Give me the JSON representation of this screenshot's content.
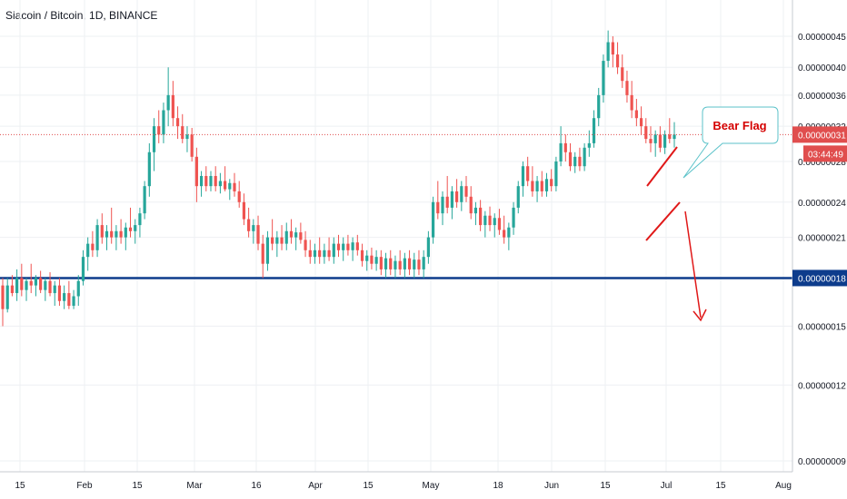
{
  "title": "Siacoin / Bitcoin, 1D, BINANCE",
  "chart_data": {
    "type": "candlestick",
    "x_ticks": [
      "15",
      "Feb",
      "15",
      "Mar",
      "16",
      "Apr",
      "15",
      "May",
      "18",
      "Jun",
      "15",
      "Jul",
      "15",
      "Aug"
    ],
    "y_ticks": [
      "0.00000045",
      "0.00000040",
      "0.00000036",
      "0.00000032",
      "0.00000028",
      "0.00000024",
      "0.00000021",
      "0.00000015",
      "0.00000012",
      "0.00000009"
    ],
    "y_scale": "log",
    "ylim": [
      8.6e-08,
      5.1e-07
    ],
    "grid": true,
    "current_price": {
      "value": 3.1e-07,
      "label": "0.00000031",
      "countdown": "03:44:49",
      "color": "#e04e4e"
    },
    "support_level": {
      "value": 1.8e-07,
      "label": "0.00000018",
      "color": "#0d3c8c"
    },
    "annotation": {
      "text": "Bear Flag",
      "color": "#d40000",
      "box_color": "#5bc2c9"
    },
    "candles": [
      [
        1.75e-07,
        1.8e-07,
        1.5e-07,
        1.6e-07
      ],
      [
        1.6e-07,
        1.8e-07,
        1.58e-07,
        1.75e-07
      ],
      [
        1.75e-07,
        1.82e-07,
        1.68e-07,
        1.7e-07
      ],
      [
        1.7e-07,
        1.86e-07,
        1.65e-07,
        1.8e-07
      ],
      [
        1.8e-07,
        1.9e-07,
        1.68e-07,
        1.72e-07
      ],
      [
        1.72e-07,
        1.8e-07,
        1.65e-07,
        1.78e-07
      ],
      [
        1.78e-07,
        1.9e-07,
        1.7e-07,
        1.75e-07
      ],
      [
        1.75e-07,
        1.82e-07,
        1.68e-07,
        1.8e-07
      ],
      [
        1.8e-07,
        1.85e-07,
        1.7e-07,
        1.72e-07
      ],
      [
        1.72e-07,
        1.8e-07,
        1.65e-07,
        1.78e-07
      ],
      [
        1.78e-07,
        1.84e-07,
        1.68e-07,
        1.7e-07
      ],
      [
        1.7e-07,
        1.78e-07,
        1.62e-07,
        1.75e-07
      ],
      [
        1.75e-07,
        1.8e-07,
        1.62e-07,
        1.65e-07
      ],
      [
        1.65e-07,
        1.75e-07,
        1.6e-07,
        1.7e-07
      ],
      [
        1.7e-07,
        1.78e-07,
        1.6e-07,
        1.62e-07
      ],
      [
        1.62e-07,
        1.72e-07,
        1.6e-07,
        1.68e-07
      ],
      [
        1.68e-07,
        1.82e-07,
        1.62e-07,
        1.78e-07
      ],
      [
        1.78e-07,
        2e-07,
        1.75e-07,
        1.95e-07
      ],
      [
        1.95e-07,
        2.1e-07,
        1.85e-07,
        2.05e-07
      ],
      [
        2.05e-07,
        2.15e-07,
        1.95e-07,
        2e-07
      ],
      [
        2e-07,
        2.25e-07,
        1.95e-07,
        2.2e-07
      ],
      [
        2.2e-07,
        2.3e-07,
        2.05e-07,
        2.1e-07
      ],
      [
        2.1e-07,
        2.2e-07,
        2e-07,
        2.15e-07
      ],
      [
        2.15e-07,
        2.35e-07,
        2.05e-07,
        2.1e-07
      ],
      [
        2.1e-07,
        2.2e-07,
        2e-07,
        2.15e-07
      ],
      [
        2.15e-07,
        2.25e-07,
        2.05e-07,
        2.1e-07
      ],
      [
        2.1e-07,
        2.22e-07,
        2e-07,
        2.18e-07
      ],
      [
        2.18e-07,
        2.35e-07,
        2.1e-07,
        2.15e-07
      ],
      [
        2.15e-07,
        2.25e-07,
        2.05e-07,
        2.2e-07
      ],
      [
        2.2e-07,
        2.35e-07,
        2.1e-07,
        2.3e-07
      ],
      [
        2.3e-07,
        2.6e-07,
        2.25e-07,
        2.55e-07
      ],
      [
        2.55e-07,
        3e-07,
        2.45e-07,
        2.9e-07
      ],
      [
        2.9e-07,
        3.3e-07,
        2.7e-07,
        3.2e-07
      ],
      [
        3.2e-07,
        3.4e-07,
        3e-07,
        3.1e-07
      ],
      [
        3.1e-07,
        3.5e-07,
        3e-07,
        3.4e-07
      ],
      [
        3.4e-07,
        4e-07,
        3.2e-07,
        3.6e-07
      ],
      [
        3.6e-07,
        3.8e-07,
        3.2e-07,
        3.3e-07
      ],
      [
        3.3e-07,
        3.45e-07,
        3.05e-07,
        3.2e-07
      ],
      [
        3.2e-07,
        3.35e-07,
        3e-07,
        3.05e-07
      ],
      [
        3.05e-07,
        3.2e-07,
        2.9e-07,
        3.1e-07
      ],
      [
        3.1e-07,
        3.18e-07,
        2.8e-07,
        2.85e-07
      ],
      [
        2.85e-07,
        2.95e-07,
        2.4e-07,
        2.55e-07
      ],
      [
        2.55e-07,
        2.7e-07,
        2.45e-07,
        2.65e-07
      ],
      [
        2.65e-07,
        2.75e-07,
        2.5e-07,
        2.55e-07
      ],
      [
        2.55e-07,
        2.7e-07,
        2.5e-07,
        2.65e-07
      ],
      [
        2.65e-07,
        2.75e-07,
        2.5e-07,
        2.55e-07
      ],
      [
        2.55e-07,
        2.68e-07,
        2.48e-07,
        2.6e-07
      ],
      [
        2.6e-07,
        2.75e-07,
        2.5e-07,
        2.52e-07
      ],
      [
        2.52e-07,
        2.62e-07,
        2.42e-07,
        2.58e-07
      ],
      [
        2.58e-07,
        2.68e-07,
        2.45e-07,
        2.5e-07
      ],
      [
        2.5e-07,
        2.6e-07,
        2.35e-07,
        2.4e-07
      ],
      [
        2.4e-07,
        2.48e-07,
        2.2e-07,
        2.25e-07
      ],
      [
        2.25e-07,
        2.35e-07,
        2.1e-07,
        2.15e-07
      ],
      [
        2.15e-07,
        2.25e-07,
        2.05e-07,
        2.2e-07
      ],
      [
        2.2e-07,
        2.28e-07,
        2e-07,
        2.05e-07
      ],
      [
        2.05e-07,
        2.12e-07,
        1.8e-07,
        1.9e-07
      ],
      [
        1.9e-07,
        2.15e-07,
        1.85e-07,
        2.1e-07
      ],
      [
        2.1e-07,
        2.25e-07,
        2e-07,
        2.05e-07
      ],
      [
        2.05e-07,
        2.15e-07,
        1.95e-07,
        2.1e-07
      ],
      [
        2.1e-07,
        2.2e-07,
        2e-07,
        2.05e-07
      ],
      [
        2.05e-07,
        2.22e-07,
        2e-07,
        2.15e-07
      ],
      [
        2.15e-07,
        2.25e-07,
        2.05e-07,
        2.1e-07
      ],
      [
        2.1e-07,
        2.18e-07,
        2e-07,
        2.14e-07
      ],
      [
        2.14e-07,
        2.22e-07,
        2.05e-07,
        2.08e-07
      ],
      [
        2.08e-07,
        2.15e-07,
        1.95e-07,
        2e-07
      ],
      [
        2e-07,
        2.08e-07,
        1.9e-07,
        1.95e-07
      ],
      [
        1.95e-07,
        2.05e-07,
        1.9e-07,
        2e-07
      ],
      [
        2e-07,
        2.1e-07,
        1.9e-07,
        1.95e-07
      ],
      [
        1.95e-07,
        2.05e-07,
        1.9e-07,
        2e-07
      ],
      [
        2e-07,
        2.1e-07,
        1.92e-07,
        1.95e-07
      ],
      [
        1.95e-07,
        2.1e-07,
        1.9e-07,
        2.05e-07
      ],
      [
        2.05e-07,
        2.12e-07,
        1.95e-07,
        2e-07
      ],
      [
        2e-07,
        2.1e-07,
        1.92e-07,
        2.05e-07
      ],
      [
        2.05e-07,
        2.12e-07,
        1.96e-07,
        2e-07
      ],
      [
        2e-07,
        2.1e-07,
        1.92e-07,
        2.06e-07
      ],
      [
        2.06e-07,
        2.12e-07,
        1.96e-07,
        2e-07
      ],
      [
        2e-07,
        2.05e-07,
        1.88e-07,
        1.92e-07
      ],
      [
        1.92e-07,
        2e-07,
        1.85e-07,
        1.96e-07
      ],
      [
        1.96e-07,
        2.02e-07,
        1.86e-07,
        1.9e-07
      ],
      [
        1.9e-07,
        2e-07,
        1.85e-07,
        1.95e-07
      ],
      [
        1.95e-07,
        2e-07,
        1.82e-07,
        1.86e-07
      ],
      [
        1.86e-07,
        1.98e-07,
        1.8e-07,
        1.94e-07
      ],
      [
        1.94e-07,
        2e-07,
        1.82e-07,
        1.86e-07
      ],
      [
        1.86e-07,
        1.96e-07,
        1.8e-07,
        1.92e-07
      ],
      [
        1.92e-07,
        2e-07,
        1.82e-07,
        1.86e-07
      ],
      [
        1.86e-07,
        1.98e-07,
        1.8e-07,
        1.94e-07
      ],
      [
        1.94e-07,
        2e-07,
        1.82e-07,
        1.86e-07
      ],
      [
        1.86e-07,
        1.98e-07,
        1.8e-07,
        1.93e-07
      ],
      [
        1.93e-07,
        2e-07,
        1.82e-07,
        1.86e-07
      ],
      [
        1.86e-07,
        2e-07,
        1.8e-07,
        1.95e-07
      ],
      [
        1.95e-07,
        2.15e-07,
        1.9e-07,
        2.1e-07
      ],
      [
        2.1e-07,
        2.45e-07,
        2.05e-07,
        2.4e-07
      ],
      [
        2.4e-07,
        2.6e-07,
        2.25e-07,
        2.3e-07
      ],
      [
        2.3e-07,
        2.5e-07,
        2.2e-07,
        2.45e-07
      ],
      [
        2.45e-07,
        2.65e-07,
        2.3e-07,
        2.35e-07
      ],
      [
        2.35e-07,
        2.55e-07,
        2.25e-07,
        2.5e-07
      ],
      [
        2.5e-07,
        2.62e-07,
        2.35e-07,
        2.4e-07
      ],
      [
        2.4e-07,
        2.6e-07,
        2.32e-07,
        2.55e-07
      ],
      [
        2.55e-07,
        2.65e-07,
        2.4e-07,
        2.45e-07
      ],
      [
        2.45e-07,
        2.55e-07,
        2.25e-07,
        2.3e-07
      ],
      [
        2.3e-07,
        2.4e-07,
        2.2e-07,
        2.35e-07
      ],
      [
        2.35e-07,
        2.42e-07,
        2.15e-07,
        2.2e-07
      ],
      [
        2.2e-07,
        2.32e-07,
        2.1e-07,
        2.28e-07
      ],
      [
        2.28e-07,
        2.36e-07,
        2.15e-07,
        2.2e-07
      ],
      [
        2.2e-07,
        2.3e-07,
        2.1e-07,
        2.26e-07
      ],
      [
        2.26e-07,
        2.34e-07,
        2.12e-07,
        2.16e-07
      ],
      [
        2.16e-07,
        2.28e-07,
        2.05e-07,
        2.1e-07
      ],
      [
        2.1e-07,
        2.22e-07,
        2e-07,
        2.18e-07
      ],
      [
        2.18e-07,
        2.4e-07,
        2.12e-07,
        2.35e-07
      ],
      [
        2.35e-07,
        2.6e-07,
        2.3e-07,
        2.55e-07
      ],
      [
        2.55e-07,
        2.8e-07,
        2.45e-07,
        2.75e-07
      ],
      [
        2.75e-07,
        2.85e-07,
        2.55e-07,
        2.6e-07
      ],
      [
        2.6e-07,
        2.75e-07,
        2.45e-07,
        2.5e-07
      ],
      [
        2.5e-07,
        2.65e-07,
        2.4e-07,
        2.6e-07
      ],
      [
        2.6e-07,
        2.7e-07,
        2.45e-07,
        2.5e-07
      ],
      [
        2.5e-07,
        2.68e-07,
        2.45e-07,
        2.62e-07
      ],
      [
        2.62e-07,
        2.72e-07,
        2.5e-07,
        2.55e-07
      ],
      [
        2.55e-07,
        2.85e-07,
        2.5e-07,
        2.8e-07
      ],
      [
        2.8e-07,
        3.2e-07,
        2.75e-07,
        3e-07
      ],
      [
        3e-07,
        3.1e-07,
        2.8e-07,
        2.9e-07
      ],
      [
        2.9e-07,
        3e-07,
        2.7e-07,
        2.75e-07
      ],
      [
        2.75e-07,
        2.9e-07,
        2.68e-07,
        2.85e-07
      ],
      [
        2.85e-07,
        2.95e-07,
        2.7e-07,
        2.75e-07
      ],
      [
        2.75e-07,
        3e-07,
        2.7e-07,
        2.95e-07
      ],
      [
        2.95e-07,
        3.15e-07,
        2.85e-07,
        3e-07
      ],
      [
        3e-07,
        3.4e-07,
        2.95e-07,
        3.3e-07
      ],
      [
        3.3e-07,
        3.7e-07,
        3.2e-07,
        3.6e-07
      ],
      [
        3.6e-07,
        4.2e-07,
        3.5e-07,
        4.1e-07
      ],
      [
        4.1e-07,
        4.6e-07,
        4e-07,
        4.4e-07
      ],
      [
        4.4e-07,
        4.5e-07,
        4e-07,
        4.2e-07
      ],
      [
        4.2e-07,
        4.4e-07,
        3.9e-07,
        4e-07
      ],
      [
        4e-07,
        4.2e-07,
        3.7e-07,
        3.8e-07
      ],
      [
        3.8e-07,
        3.95e-07,
        3.5e-07,
        3.6e-07
      ],
      [
        3.6e-07,
        3.8e-07,
        3.3e-07,
        3.4e-07
      ],
      [
        3.4e-07,
        3.55e-07,
        3.2e-07,
        3.3e-07
      ],
      [
        3.3e-07,
        3.45e-07,
        3.1e-07,
        3.2e-07
      ],
      [
        3.2e-07,
        3.3e-07,
        3e-07,
        3.05e-07
      ],
      [
        3.05e-07,
        3.2e-07,
        2.9e-07,
        3e-07
      ],
      [
        3e-07,
        3.15e-07,
        2.85e-07,
        3.1e-07
      ],
      [
        3.1e-07,
        3.2e-07,
        2.9e-07,
        2.95e-07
      ],
      [
        2.95e-07,
        3.15e-07,
        2.88e-07,
        3.1e-07
      ],
      [
        3.1e-07,
        3.3e-07,
        3e-07,
        3.05e-07
      ],
      [
        3.05e-07,
        3.25e-07,
        2.95e-07,
        3.1e-07
      ]
    ]
  }
}
